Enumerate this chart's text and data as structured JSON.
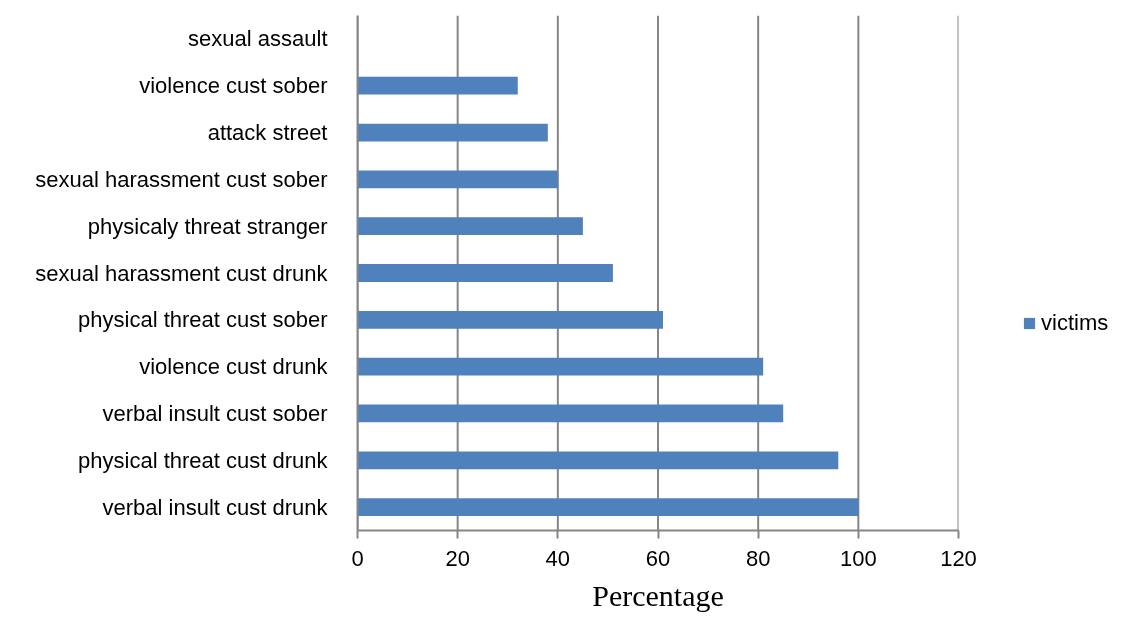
{
  "chart_data": {
    "type": "bar",
    "orientation": "horizontal",
    "xlabel": "Percentage",
    "categories": [
      "sexual assault",
      "violence cust sober",
      "attack street",
      "sexual harassment cust sober",
      "physicaly threat stranger",
      "sexual harassment cust drunk",
      "physical threat cust sober",
      "violence cust drunk",
      "verbal insult cust sober",
      "physical threat cust drunk",
      "verbal insult cust drunk"
    ],
    "series": [
      {
        "name": "victims",
        "color": "#4f81bd",
        "values": [
          0,
          32,
          38,
          40,
          45,
          51,
          61,
          81,
          85,
          96,
          100
        ]
      }
    ],
    "xlim": [
      0,
      120
    ],
    "xticks": [
      0,
      20,
      40,
      60,
      80,
      100,
      120
    ],
    "grid": "x",
    "legend": "right"
  }
}
